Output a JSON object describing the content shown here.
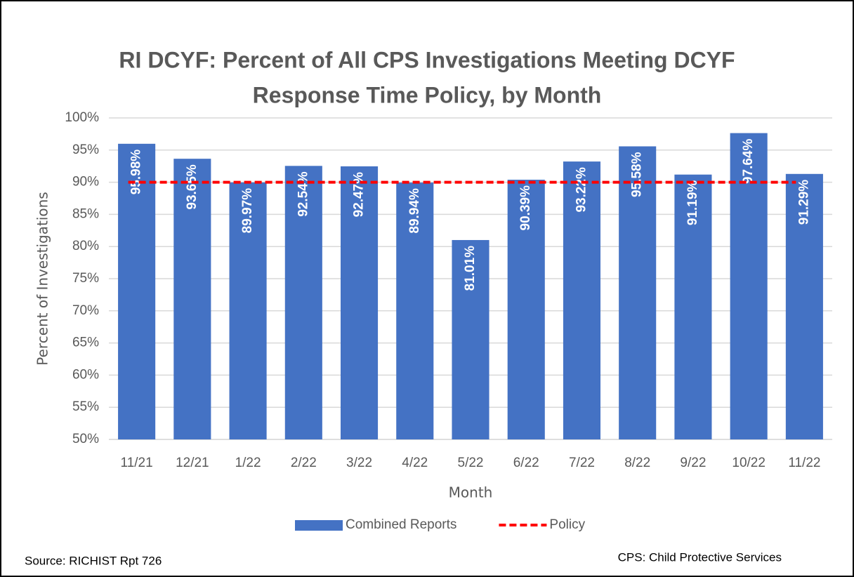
{
  "chart_data": {
    "type": "bar",
    "title": [
      "RI DCYF: Percent of All CPS Investigations Meeting DCYF",
      "Response Time Policy, by Month"
    ],
    "x_label": "Month",
    "y_label": "Percent of Investigations",
    "categories": [
      "11/21",
      "12/21",
      "1/22",
      "2/22",
      "3/22",
      "4/22",
      "5/22",
      "6/22",
      "7/22",
      "8/22",
      "9/22",
      "10/22",
      "11/22"
    ],
    "series": [
      {
        "name": "Combined Reports",
        "type": "bar",
        "color": "#4472c4",
        "values": [
          95.98,
          93.65,
          89.97,
          92.54,
          92.47,
          89.94,
          81.01,
          90.39,
          93.22,
          95.58,
          91.19,
          97.64,
          91.29
        ],
        "value_labels": [
          "95.98%",
          "93.65%",
          "89.97%",
          "92.54%",
          "92.47%",
          "89.94%",
          "81.01%",
          "90.39%",
          "93.22%",
          "95.58%",
          "91.19%",
          "97.64%",
          "91.29%"
        ]
      },
      {
        "name": "Policy",
        "type": "line",
        "color": "#ff0000",
        "dashed": true,
        "values": [
          90,
          90,
          90,
          90,
          90,
          90,
          90,
          90,
          90,
          90,
          90,
          90,
          90
        ]
      }
    ],
    "ylim": [
      50,
      100
    ],
    "yticks": [
      {
        "value": 50,
        "label": "50%"
      },
      {
        "value": 55,
        "label": "55%"
      },
      {
        "value": 60,
        "label": "60%"
      },
      {
        "value": 65,
        "label": "65%"
      },
      {
        "value": 70,
        "label": "70%"
      },
      {
        "value": 75,
        "label": "75%"
      },
      {
        "value": 80,
        "label": "80%"
      },
      {
        "value": 85,
        "label": "85%"
      },
      {
        "value": 90,
        "label": "90%"
      },
      {
        "value": 95,
        "label": "95%"
      },
      {
        "value": 100,
        "label": "100%"
      }
    ],
    "grid": true,
    "legend": "bottom",
    "annotations": [
      "Source: RICHIST Rpt 726",
      "CPS: Child Protective Services"
    ]
  }
}
